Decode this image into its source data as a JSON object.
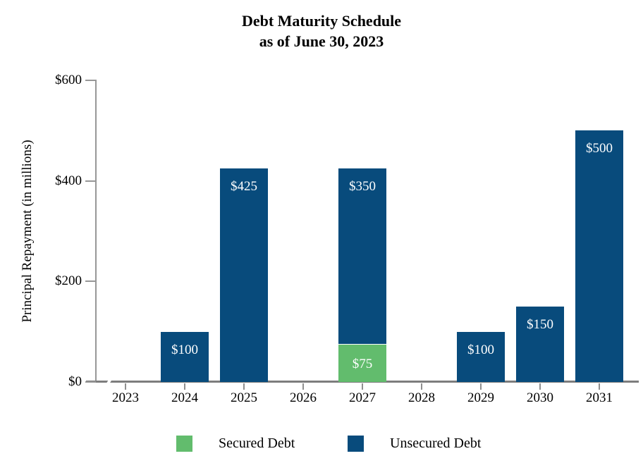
{
  "title": {
    "line1": "Debt Maturity Schedule",
    "line2": "as of June 30, 2023"
  },
  "y_axis": {
    "title": "Principal Repayment (in millions)",
    "ticks": [
      {
        "label": "$0",
        "value": 0
      },
      {
        "label": "$200",
        "value": 200
      },
      {
        "label": "$400",
        "value": 400
      },
      {
        "label": "$600",
        "value": 600
      }
    ],
    "max": 600
  },
  "x_axis": {
    "categories": [
      "2023",
      "2024",
      "2025",
      "2026",
      "2027",
      "2028",
      "2029",
      "2030",
      "2031"
    ]
  },
  "legend": [
    {
      "label": "Secured Debt",
      "color": "#62BC6D"
    },
    {
      "label": "Unsecured Debt",
      "color": "#084B7C"
    }
  ],
  "colors": {
    "secured": "#62BC6D",
    "unsecured": "#084B7C",
    "bar_label_text": "#FFFFFF",
    "axis": "#7D7D7D"
  },
  "chart_data": {
    "type": "bar",
    "stacked": true,
    "title": "Debt Maturity Schedule as of June 30, 2023",
    "categories": [
      "2023",
      "2024",
      "2025",
      "2026",
      "2027",
      "2028",
      "2029",
      "2030",
      "2031"
    ],
    "series": [
      {
        "name": "Secured Debt",
        "color": "#62BC6D",
        "values": [
          0,
          0,
          0,
          0,
          75,
          0,
          0,
          0,
          0
        ],
        "labels": [
          "",
          "",
          "",
          "",
          "$75",
          "",
          "",
          "",
          ""
        ]
      },
      {
        "name": "Unsecured Debt",
        "color": "#084B7C",
        "values": [
          0,
          100,
          425,
          0,
          350,
          0,
          100,
          150,
          500
        ],
        "labels": [
          "",
          "$100",
          "$425",
          "",
          "$350",
          "",
          "$100",
          "$150",
          "$500"
        ]
      }
    ],
    "xlabel": "",
    "ylabel": "Principal Repayment (in millions)",
    "ylim": [
      0,
      600
    ],
    "yticks": [
      0,
      200,
      400,
      600
    ],
    "grid": false,
    "legend_position": "bottom",
    "zero_marker_category": "2023"
  }
}
